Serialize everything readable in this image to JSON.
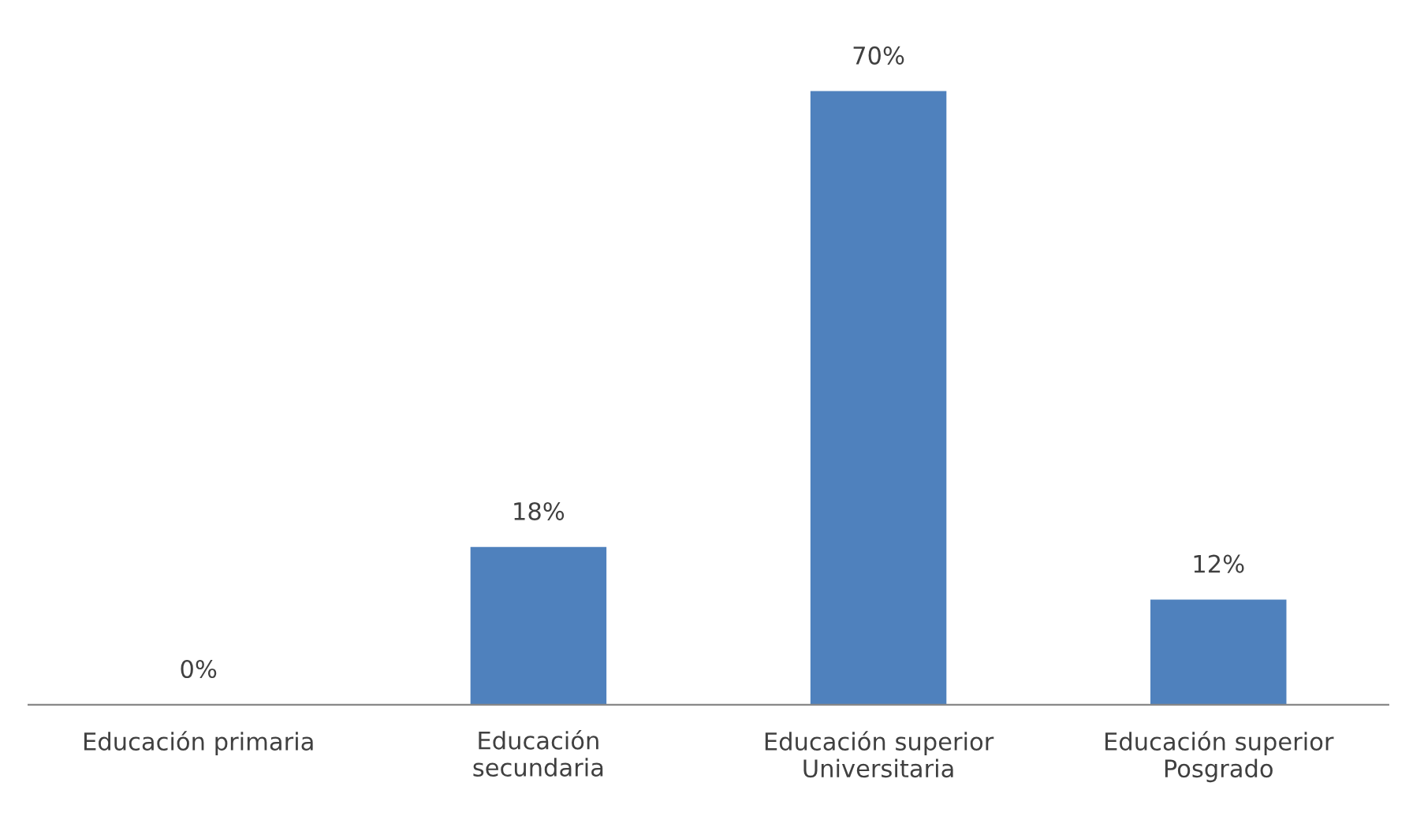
{
  "chart_data": {
    "type": "bar",
    "categories": [
      "Educación primaria",
      "Educación\nsecundaria",
      "Educación superior\nUniversitaria",
      "Educación superior\nPosgrado"
    ],
    "values": [
      0,
      18,
      70,
      12
    ],
    "value_labels": [
      "0%",
      "18%",
      "70%",
      "12%"
    ],
    "color": "#4f81bd",
    "grid": false,
    "legend": false
  }
}
